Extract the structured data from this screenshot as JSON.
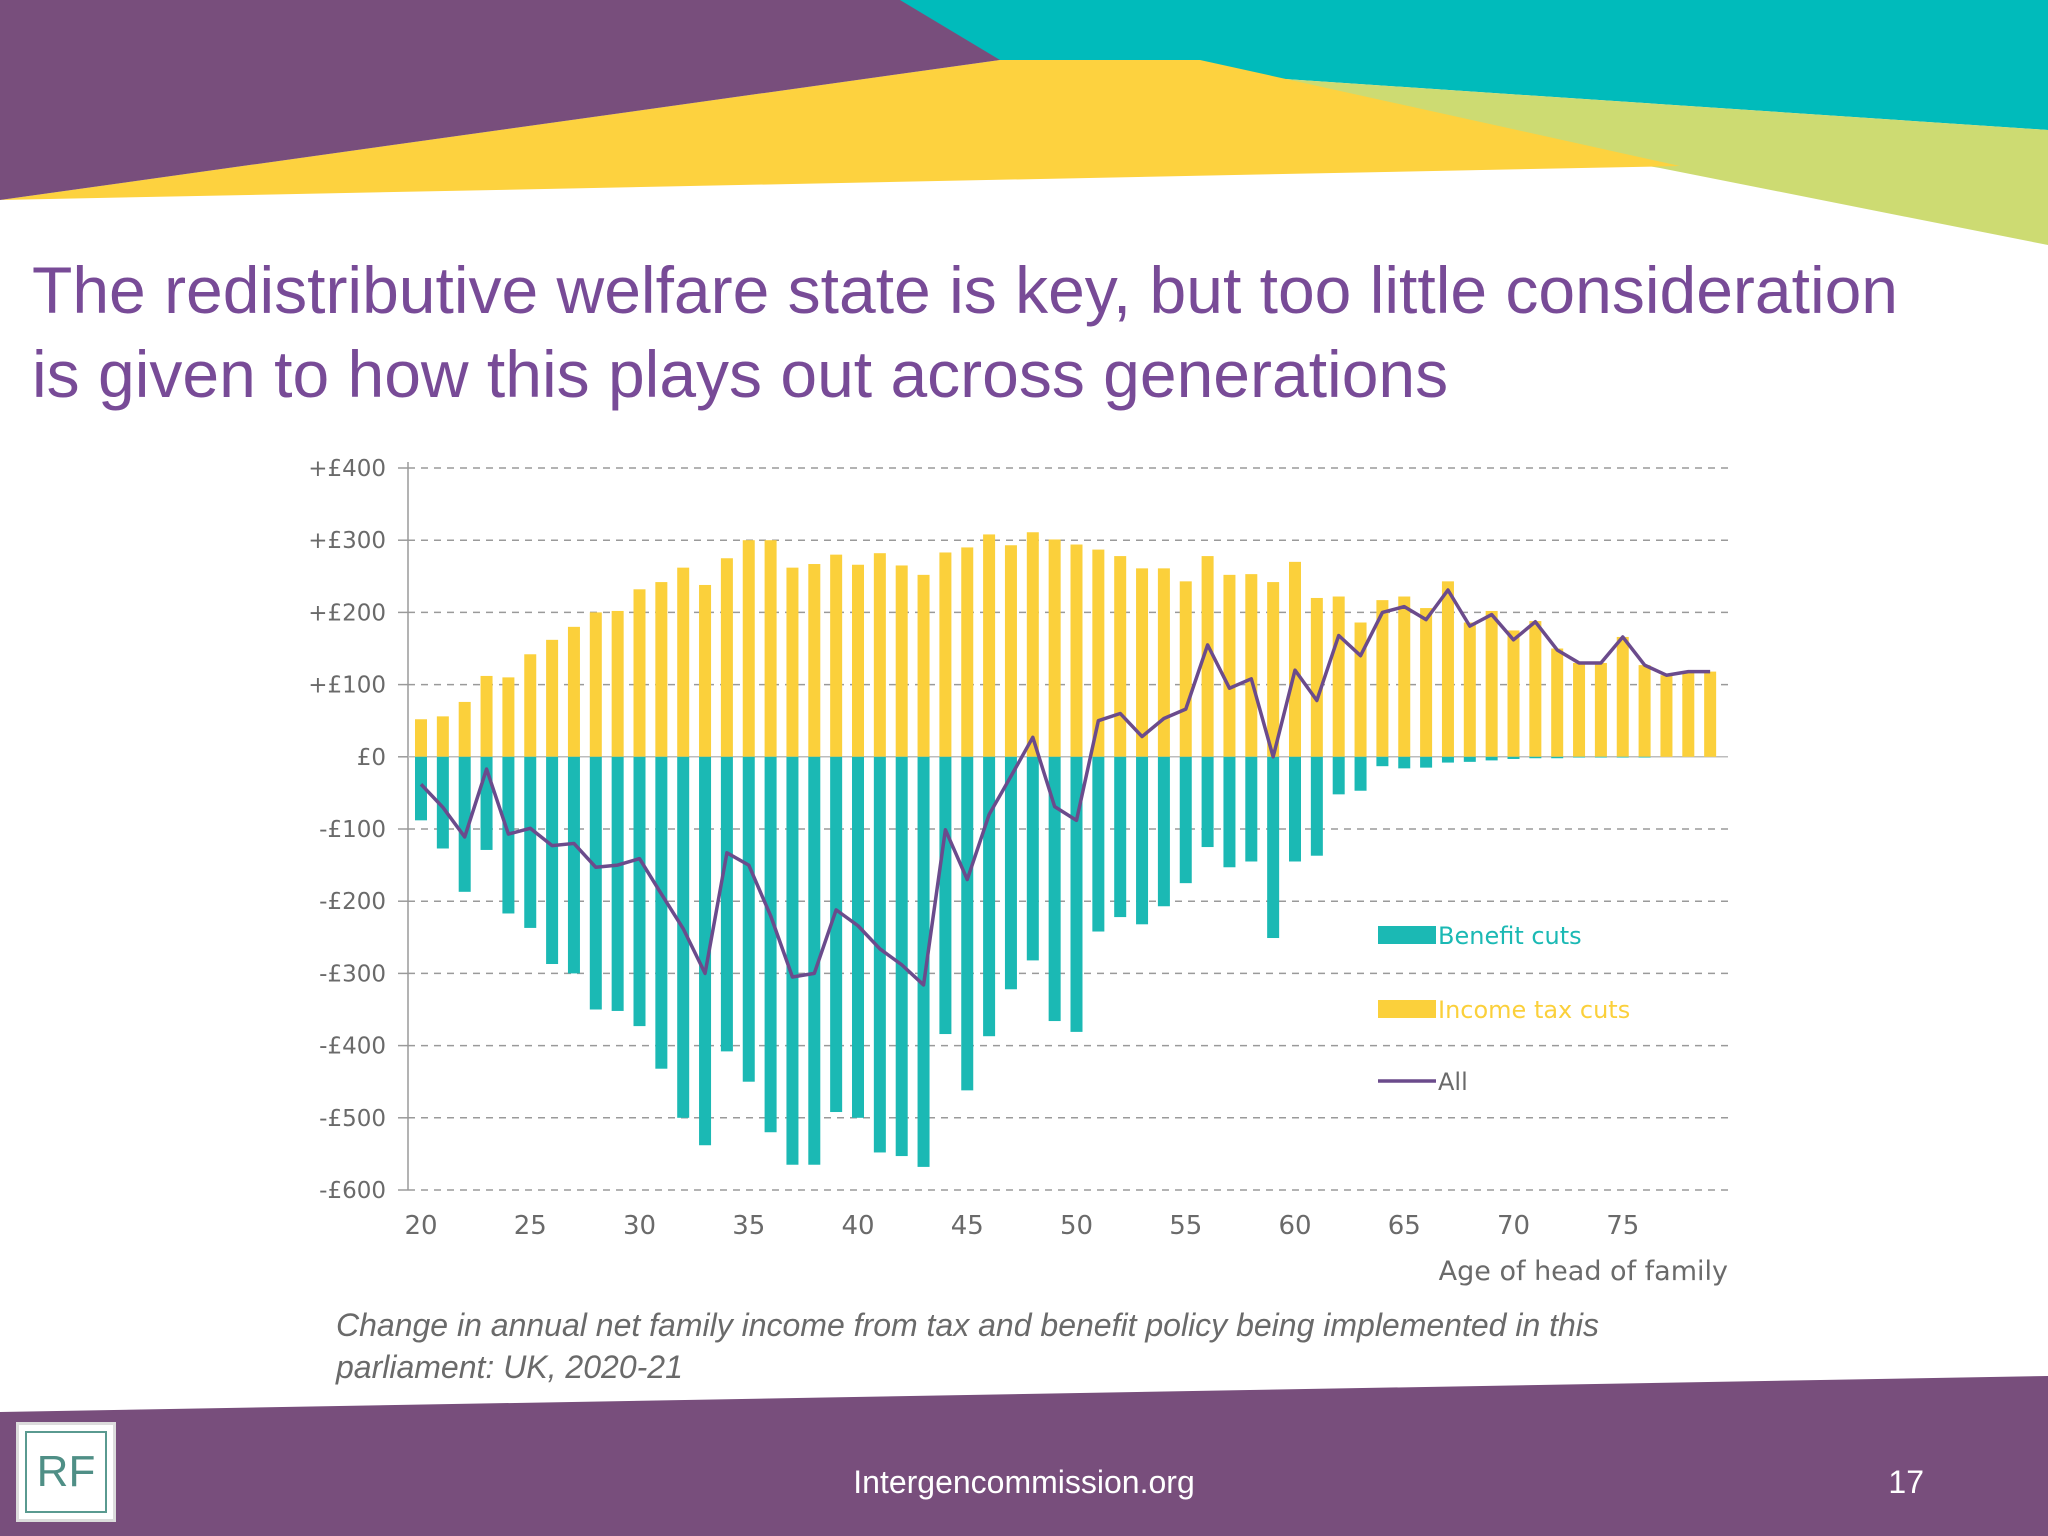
{
  "slide": {
    "title_lines": [
      "The redistributive welfare state is key, but too little consideration",
      "is given to how this plays out across generations"
    ],
    "caption_lines": [
      "Change in annual net family income from tax and benefit policy being implemented in this",
      "parliament: UK, 2020-21"
    ],
    "colors": {
      "title": "#784b97",
      "purple": "#784e7c",
      "teal": "#00bbbb",
      "yellow": "#fdd23f",
      "lime": "#cddb72"
    }
  },
  "footer": {
    "logo_text": "RF",
    "url": "Intergencommission.org",
    "page_number": "17"
  },
  "chart_data": {
    "type": "bar",
    "stacked": "diverging",
    "xlabel": "Age of head of family",
    "ylabel": "",
    "x": [
      20,
      21,
      22,
      23,
      24,
      25,
      26,
      27,
      28,
      29,
      30,
      31,
      32,
      33,
      34,
      35,
      36,
      37,
      38,
      39,
      40,
      41,
      42,
      43,
      44,
      45,
      46,
      47,
      48,
      49,
      50,
      51,
      52,
      53,
      54,
      55,
      56,
      57,
      58,
      59,
      60,
      61,
      62,
      63,
      64,
      65,
      66,
      67,
      68,
      69,
      70,
      71,
      72,
      73,
      74,
      75,
      76,
      77,
      78,
      79
    ],
    "x_ticks": [
      20,
      25,
      30,
      35,
      40,
      45,
      50,
      55,
      60,
      65,
      70,
      75
    ],
    "ylim": [
      -600,
      400
    ],
    "y_ticks": [
      400,
      300,
      200,
      100,
      0,
      -100,
      -200,
      -300,
      -400,
      -500,
      -600
    ],
    "y_tick_labels": [
      "+£400",
      "+£300",
      "+£200",
      "+£100",
      "£0",
      "-£100",
      "-£200",
      "-£300",
      "-£400",
      "-£500",
      "-£600"
    ],
    "grid": "horizontal dashed",
    "legend_position": "lower-right",
    "series": [
      {
        "name": "Benefit cuts",
        "kind": "bar",
        "color": "#1bb9b4",
        "values": [
          -88,
          -127,
          -187,
          -129,
          -217,
          -237,
          -287,
          -300,
          -350,
          -352,
          -373,
          -432,
          -500,
          -538,
          -408,
          -450,
          -520,
          -565,
          -565,
          -492,
          -500,
          -548,
          -553,
          -568,
          -384,
          -462,
          -387,
          -322,
          -282,
          -366,
          -381,
          -242,
          -222,
          -232,
          -207,
          -175,
          -125,
          -153,
          -145,
          -251,
          -145,
          -137,
          -52,
          -47,
          -13,
          -16,
          -15,
          -8,
          -7,
          -5,
          -3,
          -2,
          -2,
          -1,
          -1,
          -1,
          -1,
          0,
          0,
          0
        ]
      },
      {
        "name": "Income tax cuts",
        "kind": "bar",
        "color": "#fbd03b",
        "values": [
          52,
          56,
          76,
          112,
          110,
          142,
          162,
          180,
          200,
          202,
          232,
          242,
          262,
          238,
          275,
          300,
          300,
          262,
          267,
          280,
          266,
          282,
          265,
          252,
          283,
          290,
          308,
          293,
          311,
          301,
          294,
          287,
          278,
          261,
          261,
          243,
          278,
          252,
          253,
          242,
          270,
          220,
          222,
          186,
          217,
          222,
          206,
          243,
          186,
          202,
          175,
          188,
          150,
          130,
          130,
          166,
          127,
          113,
          118,
          118
        ]
      },
      {
        "name": "All",
        "kind": "line",
        "color": "#6b4b8c",
        "values": [
          -38,
          -70,
          -111,
          -17,
          -107,
          -99,
          -123,
          -120,
          -153,
          -150,
          -141,
          -190,
          -238,
          -300,
          -133,
          -150,
          -220,
          -305,
          -300,
          -212,
          -234,
          -266,
          -288,
          -316,
          -101,
          -170,
          -80,
          -27,
          27,
          -69,
          -88,
          50,
          60,
          28,
          53,
          66,
          155,
          95,
          108,
          0,
          120,
          78,
          168,
          140,
          200,
          208,
          190,
          231,
          181,
          197,
          162,
          187,
          148,
          130,
          130,
          166,
          127,
          113,
          118,
          118
        ]
      }
    ]
  }
}
